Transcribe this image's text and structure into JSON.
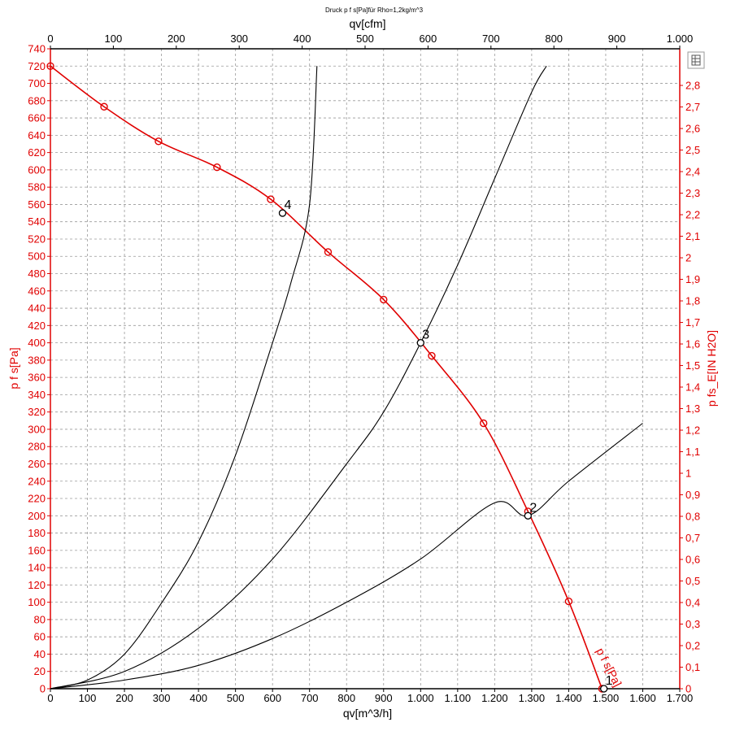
{
  "chart_data": {
    "type": "line",
    "title": "Druck p f s[Pa]für Rho=1,2kg/m^3",
    "xlabel": "qv[m^3/h]",
    "x2label": "qv[cfm]",
    "ylabel": "p f s[Pa]",
    "y2label": "p fs_E[IN H2O]",
    "xlim": [
      0,
      1700
    ],
    "x2lim": [
      0,
      1000
    ],
    "ylim": [
      0,
      740
    ],
    "y2lim": [
      0,
      2.97
    ],
    "grid": true,
    "x_ticks": [
      "0",
      "100",
      "200",
      "300",
      "400",
      "500",
      "600",
      "700",
      "800",
      "900",
      "1.000",
      "1.100",
      "1.200",
      "1.300",
      "1.400",
      "1.500",
      "1.600",
      "1.700"
    ],
    "x2_ticks": [
      "0",
      "100",
      "200",
      "300",
      "400",
      "500",
      "600",
      "700",
      "800",
      "900",
      "1.000"
    ],
    "y_ticks": [
      "0",
      "20",
      "40",
      "60",
      "80",
      "100",
      "120",
      "140",
      "160",
      "180",
      "200",
      "220",
      "240",
      "260",
      "280",
      "300",
      "320",
      "340",
      "360",
      "380",
      "400",
      "420",
      "440",
      "460",
      "480",
      "500",
      "520",
      "540",
      "560",
      "580",
      "600",
      "620",
      "640",
      "660",
      "680",
      "700",
      "720",
      "740"
    ],
    "y2_ticks": [
      "0",
      "0,1",
      "0,2",
      "0,3",
      "0,4",
      "0,5",
      "0,6",
      "0,7",
      "0,8",
      "0,9",
      "1",
      "1,1",
      "1,2",
      "1,3",
      "1,4",
      "1,5",
      "1,6",
      "1,7",
      "1,8",
      "1,9",
      "2",
      "2,1",
      "2,2",
      "2,3",
      "2,4",
      "2,5",
      "2,6",
      "2,7",
      "2,8"
    ],
    "series": [
      {
        "name": "p f s[Pa]",
        "color": "#e00000",
        "x": [
          0,
          145,
          292,
          450,
          595,
          750,
          900,
          1030,
          1170,
          1290,
          1400,
          1490
        ],
        "y": [
          720,
          673,
          633,
          603,
          566,
          505,
          450,
          385,
          307,
          205,
          101,
          0
        ],
        "markers": true
      },
      {
        "color": "#000000",
        "x": [
          0,
          100,
          200,
          300,
          400,
          500,
          600,
          650,
          700,
          720
        ],
        "y": [
          0,
          10,
          40,
          99,
          170,
          270,
          400,
          470,
          560,
          720
        ]
      },
      {
        "color": "#000000",
        "x": [
          0,
          200,
          400,
          600,
          800,
          900,
          1000,
          1100,
          1200,
          1300,
          1340
        ],
        "y": [
          0,
          20,
          70,
          150,
          260,
          320,
          400,
          490,
          590,
          690,
          720
        ]
      },
      {
        "color": "#000000",
        "x": [
          0,
          200,
          400,
          600,
          800,
          1000,
          1200,
          1290,
          1400,
          1600
        ],
        "y": [
          0,
          10,
          27,
          58,
          100,
          150,
          215,
          200,
          240,
          307
        ]
      }
    ],
    "operating_points": [
      {
        "label": "1",
        "x": 1495,
        "y": 0
      },
      {
        "label": "2",
        "x": 1290,
        "y": 200
      },
      {
        "label": "3",
        "x": 1000,
        "y": 400
      },
      {
        "label": "4",
        "x": 627,
        "y": 550
      }
    ],
    "curve_label": "p f s[Pa]"
  },
  "toolbar": {
    "icon": "table-view-icon"
  }
}
